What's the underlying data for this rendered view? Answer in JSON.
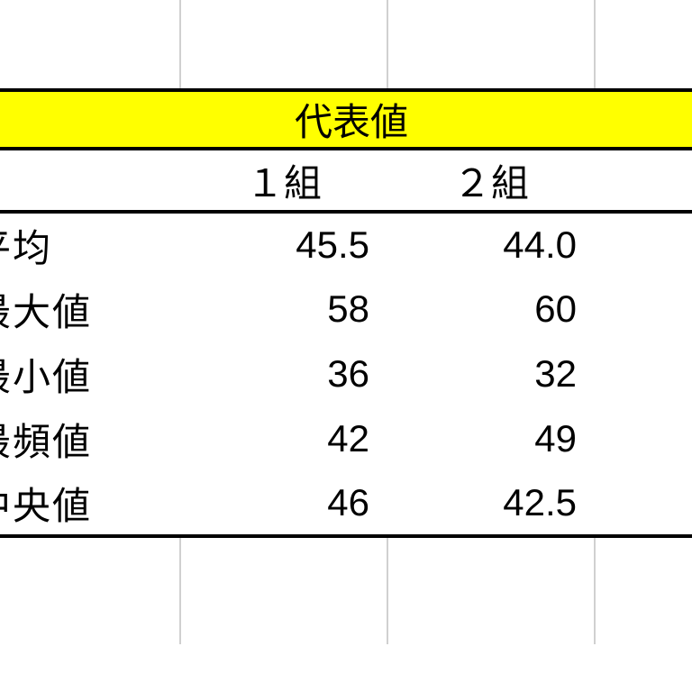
{
  "table": {
    "title": "代表値",
    "title_bg": "#ffff00",
    "border_color": "#000000",
    "grid_color": "#d0d0d0",
    "background_color": "#ffffff",
    "font_size_pt": 32,
    "columns": [
      "",
      "１組",
      "２組"
    ],
    "rows": [
      {
        "label": "平均",
        "c1": "45.5",
        "c2": "44.0"
      },
      {
        "label": "最大値",
        "c1": "58",
        "c2": "60"
      },
      {
        "label": "最小値",
        "c1": "36",
        "c2": "32"
      },
      {
        "label": "最頻値",
        "c1": "42",
        "c2": "49"
      },
      {
        "label": "中央値",
        "c1": "46",
        "c2": "42.5"
      }
    ]
  }
}
